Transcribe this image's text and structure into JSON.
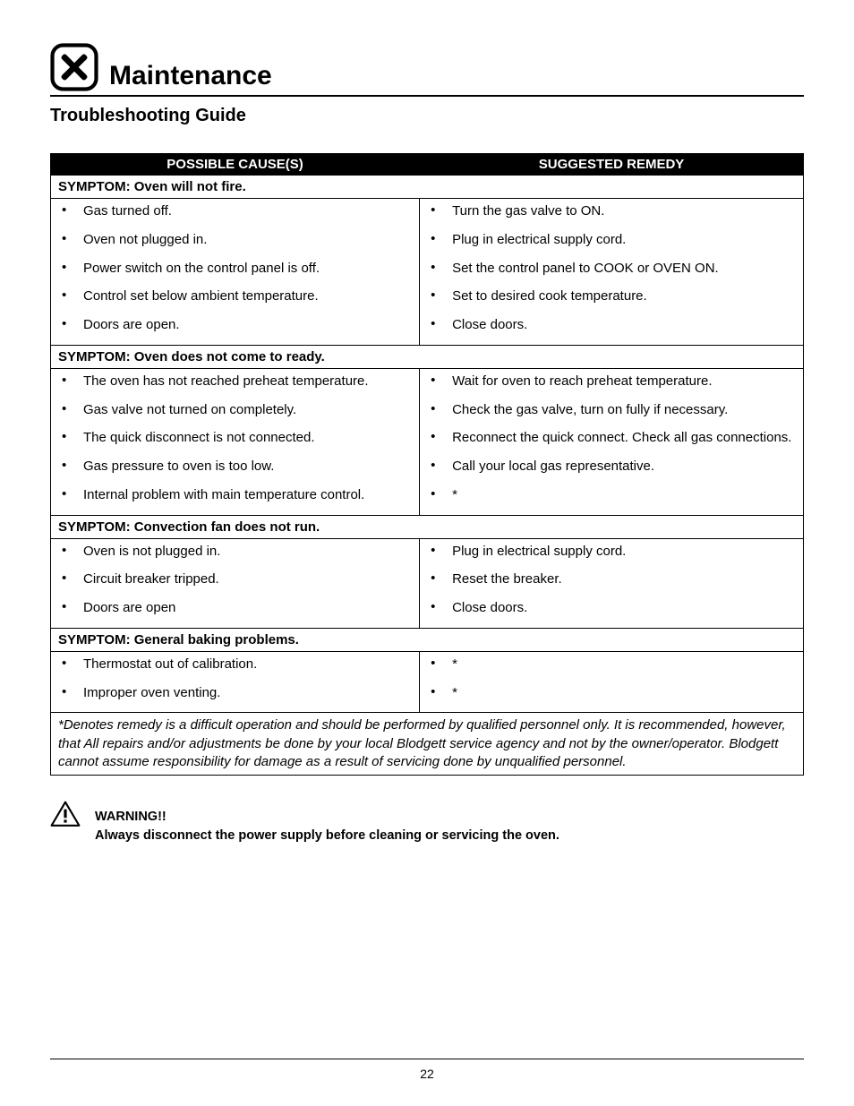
{
  "header": {
    "title": "Maintenance",
    "subtitle": "Troubleshooting Guide"
  },
  "table": {
    "col_cause": "POSSIBLE CAUSE(S)",
    "col_remedy": "SUGGESTED REMEDY",
    "sections": [
      {
        "symptom": "SYMPTOM: Oven will not fire.",
        "rows": [
          {
            "cause": "Gas turned off.",
            "remedy": "Turn the gas valve to ON."
          },
          {
            "cause": "Oven not plugged in.",
            "remedy": "Plug in electrical supply cord."
          },
          {
            "cause": "Power switch on the control panel is off.",
            "remedy": "Set the control panel to COOK or OVEN ON."
          },
          {
            "cause": "Control set below ambient temperature.",
            "remedy": "Set to desired cook temperature."
          },
          {
            "cause": "Doors are open.",
            "remedy": "Close doors."
          }
        ]
      },
      {
        "symptom": "SYMPTOM: Oven does not come to ready.",
        "rows": [
          {
            "cause": "The oven has not reached preheat temperature.",
            "remedy": "Wait for oven to reach preheat temperature."
          },
          {
            "cause": "Gas valve not turned on completely.",
            "remedy": "Check the gas valve, turn on fully if necessary."
          },
          {
            "cause": "The quick disconnect is not connected.",
            "remedy": "Reconnect the quick connect. Check all gas connections."
          },
          {
            "cause": "Gas pressure to oven is too low.",
            "remedy": "Call your local gas representative."
          },
          {
            "cause": "Internal problem with main temperature control.",
            "remedy": "*"
          }
        ]
      },
      {
        "symptom": "SYMPTOM: Convection fan does not run.",
        "rows": [
          {
            "cause": "Oven is not plugged in.",
            "remedy": "Plug in electrical supply cord."
          },
          {
            "cause": "Circuit breaker tripped.",
            "remedy": "Reset the breaker."
          },
          {
            "cause": "Doors are open",
            "remedy": "Close doors."
          }
        ]
      },
      {
        "symptom": "SYMPTOM: General baking problems.",
        "rows": [
          {
            "cause": "Thermostat out of calibration.",
            "remedy": "*"
          },
          {
            "cause": "Improper oven venting.",
            "remedy": "*"
          }
        ]
      }
    ],
    "footnote": "*Denotes remedy is a difficult operation and should be performed by qualified personnel only.  It is recommended, however, that All repairs and/or adjustments be done by your local Blodgett service agency and not by the owner/operator. Blodgett cannot assume responsibility for damage as a result of servicing done by unqualified personnel."
  },
  "warning": {
    "title": "WARNING!!",
    "body": "Always disconnect the power supply before cleaning or servicing the oven."
  },
  "page_number": "22",
  "colors": {
    "header_bg": "#000000",
    "header_fg": "#ffffff",
    "border": "#000000",
    "text": "#000000",
    "page_bg": "#ffffff"
  },
  "typography": {
    "section_title_pt": 30,
    "subtitle_pt": 20,
    "body_pt": 15,
    "warn_pt": 14.5,
    "font_family": "Arial"
  }
}
